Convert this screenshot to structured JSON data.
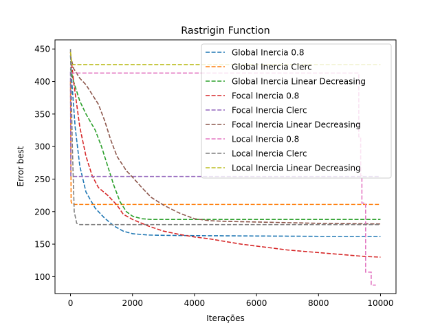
{
  "chart_data": {
    "type": "line",
    "title": "Rastrigin Function",
    "xlabel": "Iterações",
    "ylabel": "Error best",
    "xlim": [
      -500,
      10500
    ],
    "ylim": [
      74,
      464
    ],
    "xticks": [
      0,
      2000,
      4000,
      6000,
      8000,
      10000
    ],
    "yticks": [
      100,
      150,
      200,
      250,
      300,
      350,
      400,
      450
    ],
    "grid": false,
    "legend_position": "top-right",
    "series": [
      {
        "name": "Global Inercia 0.8",
        "color": "#1f77b4",
        "points": [
          [
            0,
            440
          ],
          [
            50,
            395
          ],
          [
            150,
            330
          ],
          [
            300,
            270
          ],
          [
            500,
            230
          ],
          [
            800,
            205
          ],
          [
            1100,
            190
          ],
          [
            1400,
            178
          ],
          [
            1700,
            170
          ],
          [
            2000,
            166
          ],
          [
            2500,
            164
          ],
          [
            3000,
            163.5
          ],
          [
            4000,
            163
          ],
          [
            6000,
            162.5
          ],
          [
            8000,
            162
          ],
          [
            10000,
            162
          ]
        ]
      },
      {
        "name": "Global Inercia Clerc",
        "color": "#ff7f0e",
        "points": [
          [
            0,
            400
          ],
          [
            20,
            215
          ],
          [
            60,
            211
          ],
          [
            10000,
            211
          ]
        ]
      },
      {
        "name": "Global Inercia Linear Decreasing",
        "color": "#2ca02c",
        "points": [
          [
            0,
            420
          ],
          [
            100,
            400
          ],
          [
            300,
            370
          ],
          [
            500,
            350
          ],
          [
            800,
            325
          ],
          [
            1000,
            300
          ],
          [
            1200,
            270
          ],
          [
            1400,
            240
          ],
          [
            1600,
            215
          ],
          [
            1800,
            200
          ],
          [
            2000,
            193
          ],
          [
            2300,
            189
          ],
          [
            2600,
            188
          ],
          [
            4000,
            188
          ],
          [
            6000,
            188
          ],
          [
            10000,
            188
          ]
        ]
      },
      {
        "name": "Focal Inercia 0.8",
        "color": "#d62728",
        "points": [
          [
            0,
            445
          ],
          [
            100,
            400
          ],
          [
            300,
            330
          ],
          [
            500,
            285
          ],
          [
            700,
            255
          ],
          [
            900,
            237
          ],
          [
            1200,
            225
          ],
          [
            1500,
            210
          ],
          [
            1700,
            196
          ],
          [
            2000,
            188
          ],
          [
            2500,
            178
          ],
          [
            3000,
            170
          ],
          [
            3500,
            165
          ],
          [
            4000,
            161
          ],
          [
            4500,
            158
          ],
          [
            5000,
            154
          ],
          [
            5500,
            150
          ],
          [
            6000,
            147
          ],
          [
            6500,
            144
          ],
          [
            7000,
            141
          ],
          [
            7500,
            139
          ],
          [
            8000,
            137
          ],
          [
            8500,
            135
          ],
          [
            9000,
            133
          ],
          [
            9500,
            131
          ],
          [
            10000,
            130
          ]
        ]
      },
      {
        "name": "Focal Inercia Clerc",
        "color": "#9467bd",
        "points": [
          [
            0,
            415
          ],
          [
            10,
            255
          ],
          [
            50,
            254
          ],
          [
            10000,
            254
          ]
        ]
      },
      {
        "name": "Focal Inercia Linear Decreasing",
        "color": "#8c564b",
        "points": [
          [
            0,
            440
          ],
          [
            100,
            420
          ],
          [
            300,
            405
          ],
          [
            500,
            395
          ],
          [
            700,
            380
          ],
          [
            900,
            365
          ],
          [
            1100,
            340
          ],
          [
            1300,
            310
          ],
          [
            1500,
            285
          ],
          [
            1800,
            263
          ],
          [
            2000,
            253
          ],
          [
            2300,
            237
          ],
          [
            2600,
            222
          ],
          [
            3000,
            210
          ],
          [
            3500,
            198
          ],
          [
            4000,
            189
          ],
          [
            4500,
            186
          ],
          [
            5000,
            185
          ],
          [
            6000,
            184
          ],
          [
            8000,
            182
          ],
          [
            10000,
            181
          ]
        ]
      },
      {
        "name": "Local Inercia 0.8",
        "color": "#e377c2",
        "points": [
          [
            0,
            413
          ],
          [
            9300,
            413
          ],
          [
            9300,
            315
          ],
          [
            9360,
            315
          ],
          [
            9360,
            255
          ],
          [
            9400,
            255
          ],
          [
            9400,
            213
          ],
          [
            9520,
            213
          ],
          [
            9520,
            107
          ],
          [
            9700,
            107
          ],
          [
            9700,
            87
          ],
          [
            9850,
            87
          ]
        ]
      },
      {
        "name": "Local Inercia Clerc",
        "color": "#7f7f7f",
        "points": [
          [
            0,
            450
          ],
          [
            60,
            300
          ],
          [
            120,
            200
          ],
          [
            200,
            182
          ],
          [
            300,
            180
          ],
          [
            10000,
            180
          ]
        ]
      },
      {
        "name": "Local Inercia Linear Decreasing",
        "color": "#bcbd22",
        "points": [
          [
            0,
            445
          ],
          [
            50,
            426
          ],
          [
            10000,
            426
          ]
        ]
      }
    ]
  }
}
